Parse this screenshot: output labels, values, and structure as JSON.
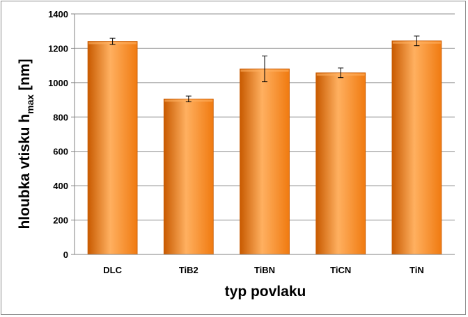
{
  "chart_data": {
    "type": "bar",
    "categories": [
      "DLC",
      "TiB2",
      "TiBN",
      "TiCN",
      "TiN"
    ],
    "values": [
      1240,
      905,
      1080,
      1057,
      1243
    ],
    "error": [
      18,
      17,
      75,
      28,
      28
    ],
    "xlabel": "typ povlaku",
    "ylabel": {
      "main": "hloubka vtisku h",
      "sub": "max",
      "unit": " [nm]"
    },
    "ylim": [
      0,
      1400
    ],
    "yticks": [
      0,
      200,
      400,
      600,
      800,
      1000,
      1200,
      1400
    ],
    "grid": true,
    "bar_color": "#F07A10",
    "bar_color_light": "#FFB060",
    "bar_color_dark": "#C85A00",
    "grid_color": "#8c8c8c"
  }
}
